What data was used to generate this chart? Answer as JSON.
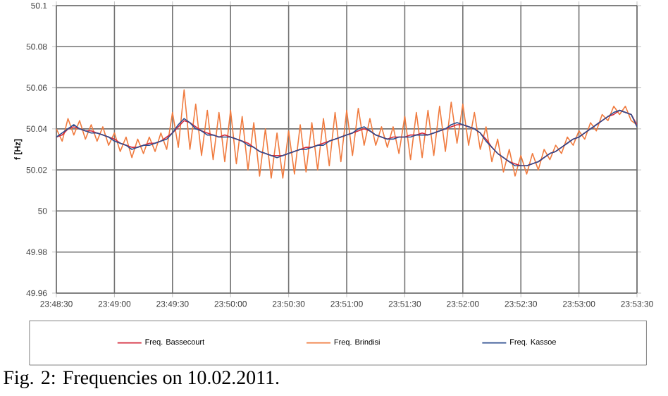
{
  "chart_data": {
    "type": "line",
    "ylabel": "f [Hz]",
    "annotations": [
      "Fig. 2:  Frequencies on 10.02.2011."
    ],
    "x": [
      23.808333,
      23.809167,
      23.81,
      23.810833,
      23.811667,
      23.8125,
      23.813333,
      23.814167,
      23.815,
      23.815833,
      23.816667,
      23.8175,
      23.818333,
      23.819167,
      23.82,
      23.820833,
      23.821667,
      23.8225,
      23.823333,
      23.824167,
      23.825,
      23.825833,
      23.826667,
      23.8275,
      23.828333,
      23.829167,
      23.83,
      23.830833,
      23.831667,
      23.8325,
      23.833333,
      23.834167,
      23.835,
      23.835833,
      23.836667,
      23.8375,
      23.838333,
      23.839167,
      23.84,
      23.840833,
      23.841667,
      23.8425,
      23.843333,
      23.844167,
      23.845,
      23.845833,
      23.846667,
      23.8475,
      23.848333,
      23.849167,
      23.85,
      23.850833,
      23.851667,
      23.8525,
      23.853333,
      23.854167,
      23.855,
      23.855833,
      23.856667,
      23.8575,
      23.858333,
      23.859167,
      23.86,
      23.860833,
      23.861667,
      23.8625,
      23.863333,
      23.864167,
      23.865,
      23.865833,
      23.866667,
      23.8675,
      23.868333,
      23.869167,
      23.87,
      23.870833,
      23.871667,
      23.8725,
      23.873333,
      23.874167,
      23.875,
      23.875833,
      23.876667,
      23.8775,
      23.878333,
      23.879167,
      23.88,
      23.880833,
      23.881667,
      23.8825,
      23.883333,
      23.884167,
      23.885,
      23.885833,
      23.886667,
      23.8875,
      23.888333,
      23.889167,
      23.89,
      23.890833,
      23.891667
    ],
    "series": [
      {
        "name": "Freq. Bassecourt",
        "color": "#d42a3c",
        "values": [
          50.036,
          50.037,
          50.04,
          50.041,
          50.04,
          50.039,
          50.039,
          50.038,
          50.037,
          50.036,
          50.035,
          50.033,
          50.032,
          50.031,
          50.031,
          50.032,
          50.033,
          50.033,
          50.034,
          50.036,
          50.038,
          50.041,
          50.044,
          50.043,
          50.041,
          50.039,
          50.038,
          50.037,
          50.036,
          50.037,
          50.036,
          50.035,
          50.034,
          50.033,
          50.031,
          50.029,
          50.028,
          50.027,
          50.027,
          50.027,
          50.028,
          50.029,
          50.03,
          50.031,
          50.031,
          50.032,
          50.033,
          50.034,
          50.035,
          50.036,
          50.037,
          50.038,
          50.039,
          50.04,
          50.039,
          50.037,
          50.036,
          50.035,
          50.036,
          50.036,
          50.036,
          50.037,
          50.037,
          50.038,
          50.037,
          50.038,
          50.039,
          50.04,
          50.041,
          50.042,
          50.042,
          50.041,
          50.04,
          50.038,
          50.035,
          50.031,
          50.028,
          50.026,
          50.024,
          50.023,
          50.022,
          50.022,
          50.023,
          50.024,
          50.026,
          50.028,
          50.029,
          50.031,
          50.033,
          50.035,
          50.036,
          50.038,
          50.04,
          50.042,
          50.044,
          50.046,
          50.047,
          50.049,
          50.048,
          50.047,
          50.042
        ]
      },
      {
        "name": "Freq. Brindisi",
        "color": "#f07b3f",
        "values": [
          50.04,
          50.034,
          50.045,
          50.037,
          50.044,
          50.035,
          50.042,
          50.034,
          50.041,
          50.032,
          50.038,
          50.029,
          50.036,
          50.026,
          50.035,
          50.028,
          50.036,
          50.029,
          50.038,
          50.03,
          50.048,
          50.031,
          50.059,
          50.03,
          50.052,
          50.027,
          50.049,
          50.025,
          50.048,
          50.024,
          50.049,
          50.023,
          50.046,
          50.02,
          50.043,
          50.017,
          50.04,
          50.016,
          50.038,
          50.016,
          50.039,
          50.018,
          50.042,
          50.019,
          50.043,
          50.02,
          50.045,
          50.022,
          50.048,
          50.024,
          50.049,
          50.027,
          50.05,
          50.032,
          50.045,
          50.032,
          50.041,
          50.031,
          50.041,
          50.028,
          50.046,
          50.025,
          50.048,
          50.026,
          50.049,
          50.027,
          50.051,
          50.029,
          50.053,
          50.033,
          50.052,
          50.032,
          50.048,
          50.03,
          50.041,
          50.024,
          50.035,
          50.019,
          50.03,
          50.017,
          50.027,
          50.018,
          50.028,
          50.02,
          50.03,
          50.025,
          50.032,
          50.028,
          50.036,
          50.032,
          50.039,
          50.035,
          50.043,
          50.039,
          50.047,
          50.044,
          50.051,
          50.047,
          50.051,
          50.044,
          50.042
        ]
      },
      {
        "name": "Freq. Kassoe",
        "color": "#2e4f8f",
        "values": [
          50.036,
          50.038,
          50.04,
          50.042,
          50.04,
          50.039,
          50.038,
          50.038,
          50.037,
          50.036,
          50.034,
          50.033,
          50.032,
          50.03,
          50.031,
          50.032,
          50.032,
          50.033,
          50.034,
          50.035,
          50.038,
          50.042,
          50.045,
          50.043,
          50.04,
          50.039,
          50.037,
          50.037,
          50.036,
          50.036,
          50.036,
          50.035,
          50.034,
          50.032,
          50.031,
          50.029,
          50.028,
          50.027,
          50.026,
          50.027,
          50.028,
          50.029,
          50.03,
          50.03,
          50.031,
          50.032,
          50.032,
          50.034,
          50.035,
          50.036,
          50.037,
          50.038,
          50.04,
          50.041,
          50.039,
          50.037,
          50.036,
          50.035,
          50.035,
          50.036,
          50.036,
          50.036,
          50.037,
          50.037,
          50.037,
          50.038,
          50.039,
          50.04,
          50.042,
          50.043,
          50.042,
          50.041,
          50.04,
          50.038,
          50.034,
          50.031,
          50.028,
          50.026,
          50.024,
          50.022,
          50.022,
          50.022,
          50.023,
          50.024,
          50.026,
          50.028,
          50.029,
          50.031,
          50.033,
          50.035,
          50.036,
          50.038,
          50.04,
          50.042,
          50.044,
          50.046,
          50.048,
          50.049,
          50.048,
          50.047,
          50.041
        ]
      }
    ],
    "xlim": [
      23.808333,
      23.891667
    ],
    "xticks": [
      {
        "value": 23.808333,
        "label": "23:48:30"
      },
      {
        "value": 23.816667,
        "label": "23:49:00"
      },
      {
        "value": 23.825,
        "label": "23:49:30"
      },
      {
        "value": 23.833333,
        "label": "23:50:00"
      },
      {
        "value": 23.841667,
        "label": "23:50:30"
      },
      {
        "value": 23.85,
        "label": "23:51:00"
      },
      {
        "value": 23.858333,
        "label": "23:51:30"
      },
      {
        "value": 23.866667,
        "label": "23:52:00"
      },
      {
        "value": 23.875,
        "label": "23:52:30"
      },
      {
        "value": 23.883333,
        "label": "23:53:00"
      },
      {
        "value": 23.891667,
        "label": "23:53:30"
      }
    ],
    "ylim": [
      49.96,
      50.1
    ],
    "yticks": [
      49.96,
      49.98,
      50,
      50.02,
      50.04,
      50.06,
      50.08,
      50.1
    ],
    "grid": true,
    "legend": "bottom",
    "marker": "none",
    "line_style": "solid"
  }
}
